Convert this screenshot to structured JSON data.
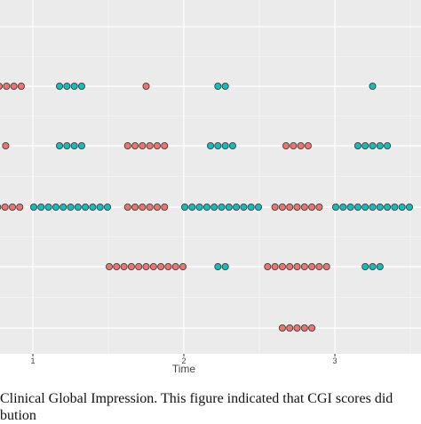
{
  "chart_data": {
    "type": "scatter",
    "description_kind": "dotplot",
    "xlabel": "Time",
    "x_ticks": [
      1,
      2,
      3
    ],
    "xlim": [
      0.8,
      3.5
    ],
    "rows": 5,
    "grid": true,
    "colors": {
      "red": "#E8766F",
      "teal": "#1AB9BA",
      "panel": "#EBEBEB",
      "grid": "#FFFFFF",
      "stroke": "#333333"
    },
    "groups": [
      {
        "row": 1,
        "color": "red",
        "count": 4,
        "center": 0.85
      },
      {
        "row": 1,
        "color": "teal",
        "count": 4,
        "center": 1.25
      },
      {
        "row": 1,
        "color": "red",
        "count": 1,
        "center": 1.75
      },
      {
        "row": 1,
        "color": "teal",
        "count": 2,
        "center": 2.25
      },
      {
        "row": 1,
        "color": "teal",
        "count": 1,
        "center": 3.25
      },
      {
        "row": 2,
        "color": "red",
        "count": 1,
        "center": 0.82
      },
      {
        "row": 2,
        "color": "teal",
        "count": 4,
        "center": 1.25
      },
      {
        "row": 2,
        "color": "red",
        "count": 6,
        "center": 1.75
      },
      {
        "row": 2,
        "color": "teal",
        "count": 4,
        "center": 2.25
      },
      {
        "row": 2,
        "color": "red",
        "count": 4,
        "center": 2.75
      },
      {
        "row": 2,
        "color": "teal",
        "count": 5,
        "center": 3.25
      },
      {
        "row": 3,
        "color": "red",
        "count": 4,
        "center": 0.84
      },
      {
        "row": 3,
        "color": "teal",
        "count": 11,
        "center": 1.25
      },
      {
        "row": 3,
        "color": "red",
        "count": 6,
        "center": 1.75
      },
      {
        "row": 3,
        "color": "teal",
        "count": 11,
        "center": 2.25
      },
      {
        "row": 3,
        "color": "red",
        "count": 7,
        "center": 2.75
      },
      {
        "row": 3,
        "color": "teal",
        "count": 11,
        "center": 3.25
      },
      {
        "row": 4,
        "color": "red",
        "count": 11,
        "center": 1.75
      },
      {
        "row": 4,
        "color": "teal",
        "count": 2,
        "center": 2.25
      },
      {
        "row": 4,
        "color": "red",
        "count": 9,
        "center": 2.75
      },
      {
        "row": 4,
        "color": "teal",
        "count": 3,
        "center": 3.25
      },
      {
        "row": 5,
        "color": "red",
        "count": 5,
        "center": 2.75
      }
    ]
  },
  "caption": {
    "line1": "Clinical Global Impression. This figure indicated that CGI scores did",
    "line2": "bution"
  }
}
